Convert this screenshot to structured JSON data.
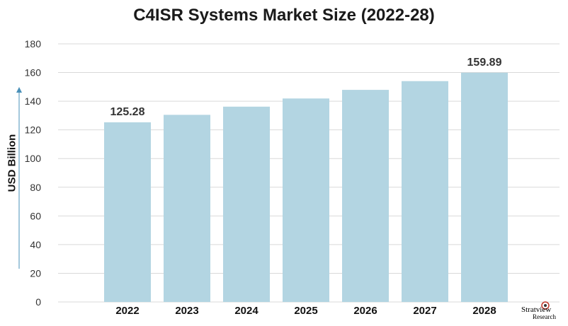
{
  "chart_data": {
    "type": "bar",
    "title": "C4ISR Systems Market Size (2022-28)",
    "xlabel": "",
    "ylabel": "USD Billion",
    "categories": [
      "2022",
      "2023",
      "2024",
      "2025",
      "2026",
      "2027",
      "2028"
    ],
    "values": [
      125.28,
      130.5,
      136.2,
      141.9,
      147.9,
      154.0,
      159.89
    ],
    "data_labels": [
      "125.28",
      "",
      "",
      "",
      "",
      "",
      "159.89"
    ],
    "ylim": [
      0,
      180
    ],
    "yticks": [
      0,
      20,
      40,
      60,
      80,
      100,
      120,
      140,
      160,
      180
    ],
    "grid": true,
    "legend": "none",
    "colors": {
      "bar": "#b3d5e2",
      "grid": "#d9d9d9",
      "axis_arrow": "#4a90b8",
      "text": "#333333"
    }
  },
  "logo": {
    "name": "Stratview",
    "sub": "Research"
  }
}
